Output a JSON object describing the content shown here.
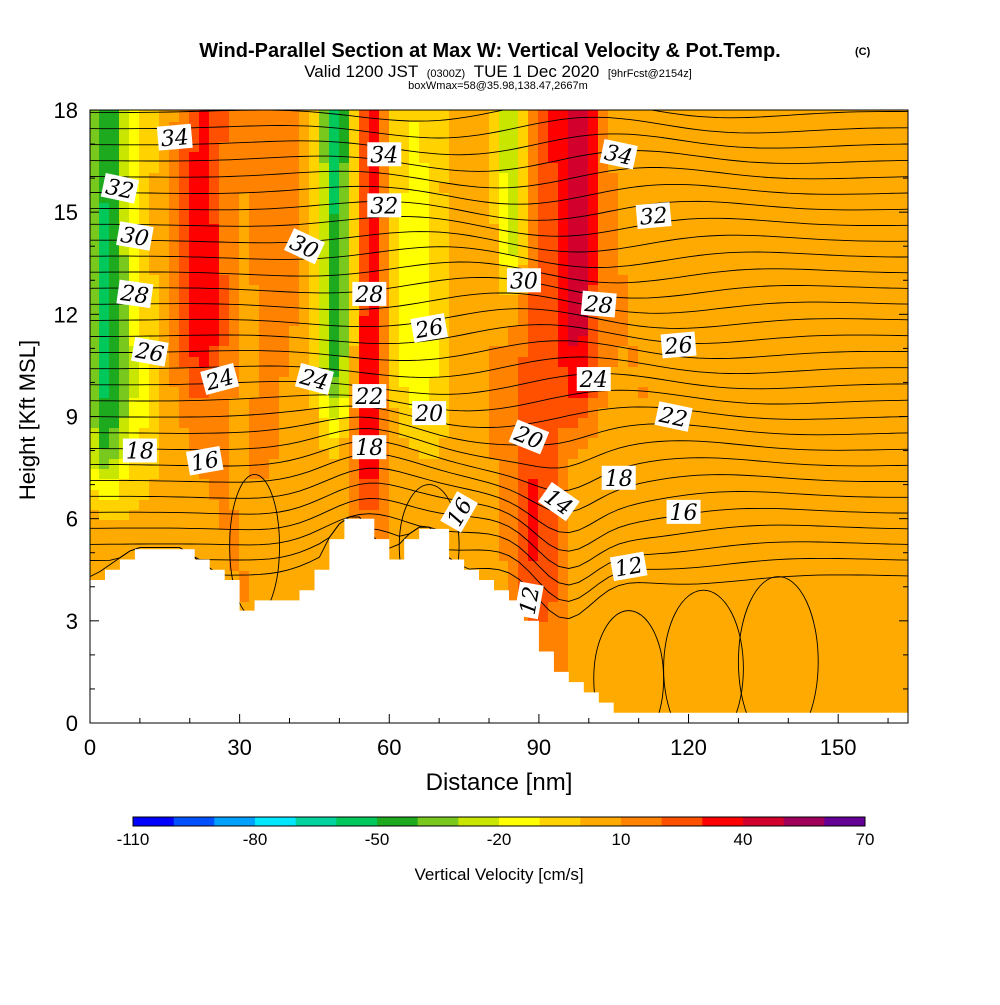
{
  "chart_data": {
    "type": "heatmap",
    "title": "Wind-Parallel Section at Max W: Vertical Velocity & Pot.Temp.",
    "title_mark": "(C)",
    "subtitle": {
      "valid": "Valid 1200 JST",
      "utc": "(0300Z)",
      "date": "TUE 1 Dec 2020",
      "forecast": "[9hrFcst@2154z]"
    },
    "box_info": "boxWmax=58@35.98,138.47,2667m",
    "xlabel": "Distance [nm]",
    "ylabel": "Height [Kft MSL]",
    "xlim": [
      0,
      164
    ],
    "ylim": [
      0,
      18
    ],
    "x_ticks": [
      0,
      30,
      60,
      90,
      120,
      150
    ],
    "y_ticks": [
      0,
      3,
      6,
      9,
      12,
      15,
      18
    ],
    "colorbar": {
      "label": "Vertical Velocity [cm/s]",
      "tick_labels": [
        -110,
        -80,
        -50,
        -20,
        10,
        40,
        70
      ],
      "bins": [
        -110,
        -100,
        -90,
        -80,
        -70,
        -60,
        -50,
        -40,
        -30,
        -20,
        -10,
        0,
        10,
        20,
        30,
        40,
        50,
        60,
        70
      ],
      "colors": [
        "#0000ff",
        "#0050ff",
        "#00a0ff",
        "#00e8ff",
        "#00d2a0",
        "#00c85a",
        "#1eaa1e",
        "#78c81e",
        "#c8e600",
        "#ffff00",
        "#ffd200",
        "#ffaa00",
        "#ff8200",
        "#ff5000",
        "#ff0000",
        "#d2002d",
        "#a0005a",
        "#640096"
      ]
    },
    "vertical_velocity_bands": [
      {
        "x": 3,
        "zmin": 7,
        "w": -45,
        "width": 4
      },
      {
        "x": 8,
        "zmin": 8,
        "w": -20,
        "width": 6
      },
      {
        "x": 23,
        "zmin": 10,
        "w": 32,
        "width": 5
      },
      {
        "x": 36,
        "zmin": 7,
        "w": 10,
        "width": 5
      },
      {
        "x": 49,
        "zmin": 9,
        "w": -40,
        "width": 3
      },
      {
        "x": 51,
        "zmin": 9,
        "w": -20,
        "width": 5
      },
      {
        "x": 56,
        "zmin": 7,
        "w": 40,
        "width": 3
      },
      {
        "x": 66,
        "zmin": 9,
        "w": -20,
        "width": 6
      },
      {
        "x": 85,
        "zmin": 13,
        "w": -40,
        "width": 3
      },
      {
        "x": 98,
        "zmin": 9,
        "w": 38,
        "width": 4
      },
      {
        "x": 90,
        "zmin": 3,
        "w": 22,
        "width": 5
      }
    ],
    "terrain_profile": {
      "x": [
        0,
        3,
        6,
        9,
        12,
        15,
        18,
        21,
        24,
        27,
        30,
        33,
        36,
        39,
        42,
        45,
        48,
        51,
        54,
        57,
        60,
        63,
        66,
        69,
        72,
        75,
        78,
        81,
        84,
        87,
        90,
        93,
        96,
        99,
        102,
        105,
        164
      ],
      "z": [
        4.2,
        4.5,
        4.8,
        5.1,
        5.1,
        5.1,
        5.1,
        4.8,
        4.5,
        4.2,
        3.3,
        3.6,
        3.6,
        3.6,
        3.9,
        4.5,
        5.4,
        6.0,
        6.0,
        5.4,
        4.8,
        5.4,
        5.7,
        5.7,
        4.8,
        4.5,
        4.2,
        3.9,
        3.6,
        3.0,
        2.1,
        1.5,
        1.2,
        0.9,
        0.6,
        0.3,
        0.3
      ]
    },
    "potential_temperature_contours": [
      {
        "label": "34",
        "x": 17,
        "z": 17.2,
        "angle": -5
      },
      {
        "label": "34",
        "x": 59,
        "z": 16.7,
        "angle": 0
      },
      {
        "label": "34",
        "x": 106,
        "z": 16.7,
        "angle": 12
      },
      {
        "label": "32",
        "x": 6,
        "z": 15.7,
        "angle": 12
      },
      {
        "label": "32",
        "x": 59,
        "z": 15.2,
        "angle": 0
      },
      {
        "label": "32",
        "x": 113,
        "z": 14.9,
        "angle": -5
      },
      {
        "label": "30",
        "x": 9,
        "z": 14.3,
        "angle": 10
      },
      {
        "label": "30",
        "x": 43,
        "z": 14.0,
        "angle": 25
      },
      {
        "label": "30",
        "x": 87,
        "z": 13.0,
        "angle": 0
      },
      {
        "label": "28",
        "x": 9,
        "z": 12.6,
        "angle": 8
      },
      {
        "label": "28",
        "x": 56,
        "z": 12.6,
        "angle": 0
      },
      {
        "label": "28",
        "x": 102,
        "z": 12.3,
        "angle": 5
      },
      {
        "label": "26",
        "x": 12,
        "z": 10.9,
        "angle": 10
      },
      {
        "label": "26",
        "x": 68,
        "z": 11.6,
        "angle": -10
      },
      {
        "label": "26",
        "x": 118,
        "z": 11.1,
        "angle": -5
      },
      {
        "label": "24",
        "x": 26,
        "z": 10.1,
        "angle": -15
      },
      {
        "label": "24",
        "x": 45,
        "z": 10.1,
        "angle": 15
      },
      {
        "label": "24",
        "x": 101,
        "z": 10.1,
        "angle": 0
      },
      {
        "label": "22",
        "x": 56,
        "z": 9.6,
        "angle": 0
      },
      {
        "label": "22",
        "x": 117,
        "z": 9.0,
        "angle": 12
      },
      {
        "label": "20",
        "x": 68,
        "z": 9.1,
        "angle": 0
      },
      {
        "label": "20",
        "x": 88,
        "z": 8.4,
        "angle": 22
      },
      {
        "label": "18",
        "x": 10,
        "z": 8.0,
        "angle": 0
      },
      {
        "label": "18",
        "x": 56,
        "z": 8.1,
        "angle": 0
      },
      {
        "label": "18",
        "x": 106,
        "z": 7.2,
        "angle": 0
      },
      {
        "label": "16",
        "x": 23,
        "z": 7.7,
        "angle": -10
      },
      {
        "label": "16",
        "x": 74,
        "z": 6.2,
        "angle": -60
      },
      {
        "label": "16",
        "x": 119,
        "z": 6.2,
        "angle": 0
      },
      {
        "label": "14",
        "x": 94,
        "z": 6.5,
        "angle": 35
      },
      {
        "label": "12",
        "x": 88,
        "z": 3.6,
        "angle": -80
      },
      {
        "label": "12",
        "x": 108,
        "z": 4.6,
        "angle": -10
      }
    ]
  }
}
